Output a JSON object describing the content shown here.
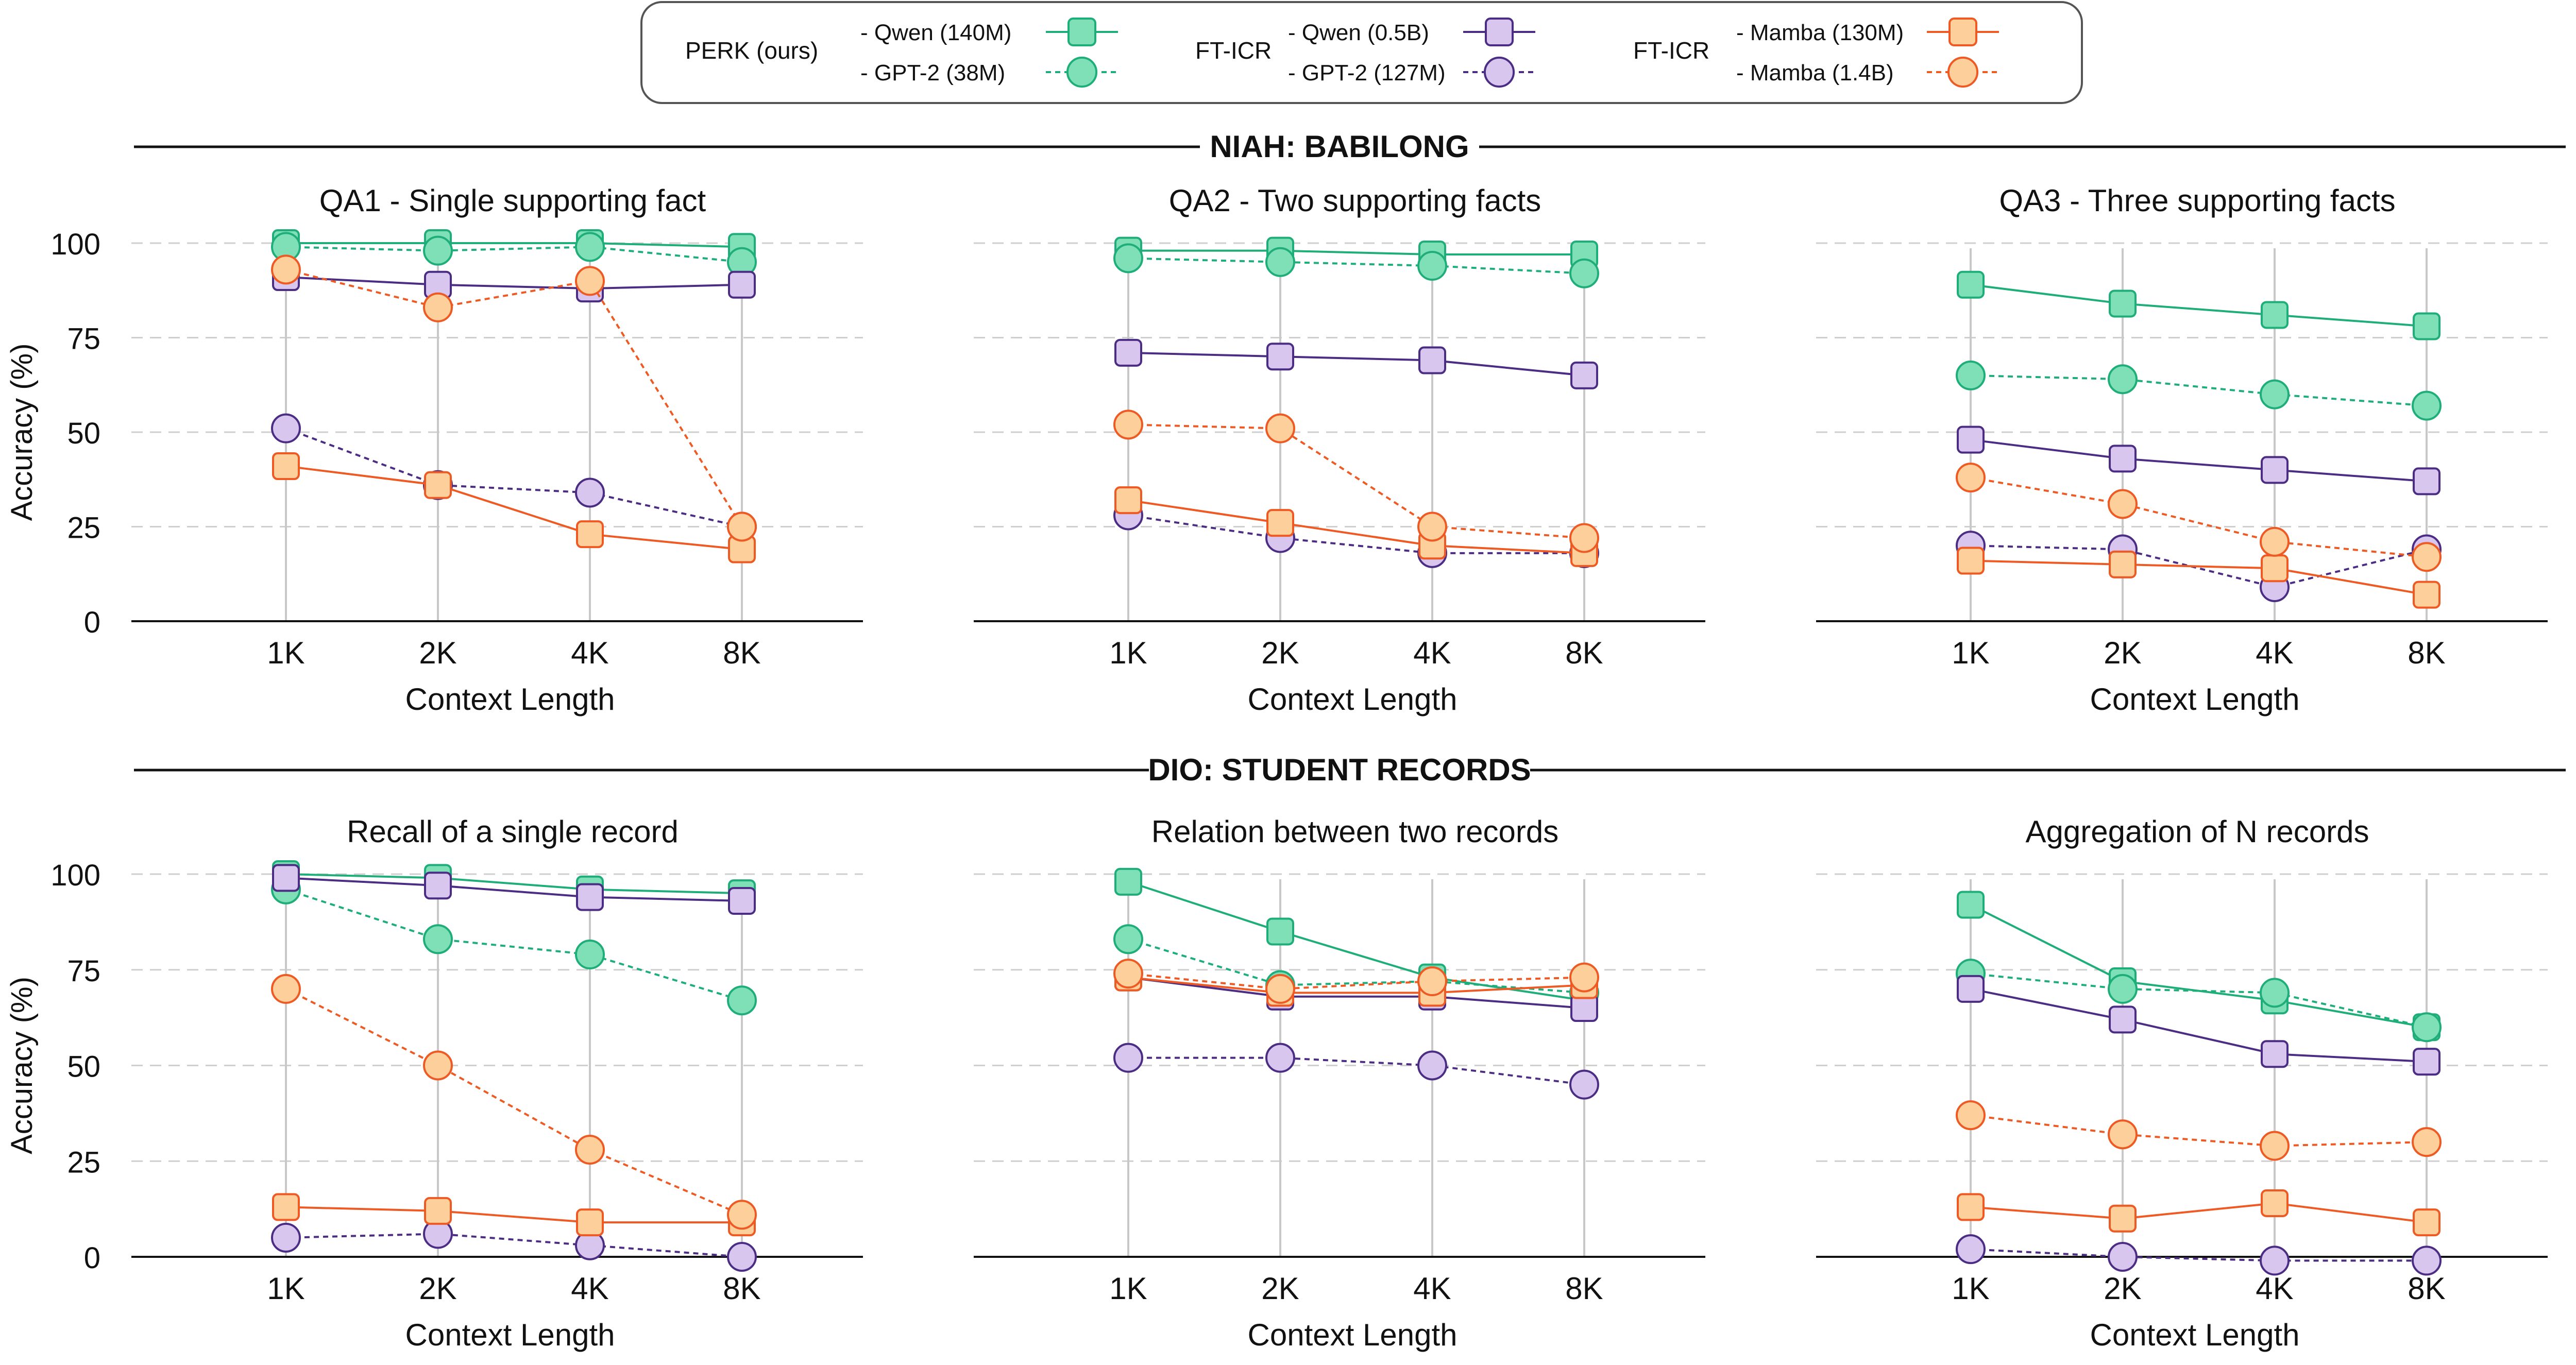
{
  "legend": {
    "groups": [
      {
        "group_label": "PERK (ours)",
        "entries": [
          {
            "label": "- Qwen (140M)",
            "series_key": "perk_qwen"
          },
          {
            "label": "- GPT-2 (38M)",
            "series_key": "perk_gpt2"
          }
        ]
      },
      {
        "group_label": "FT-ICR",
        "entries": [
          {
            "label": "- Qwen (0.5B)",
            "series_key": "ft_qwen"
          },
          {
            "label": "- GPT-2 (127M)",
            "series_key": "ft_gpt2"
          }
        ]
      },
      {
        "group_label": "FT-ICR",
        "entries": [
          {
            "label": "- Mamba (130M)",
            "series_key": "ft_mamba130"
          },
          {
            "label": "- Mamba (1.4B)",
            "series_key": "ft_mamba14"
          }
        ]
      }
    ]
  },
  "series_styles": {
    "perk_qwen": {
      "stroke": "#1fae7a",
      "fill": "#7fe0b8",
      "marker": "square",
      "dashed": false
    },
    "perk_gpt2": {
      "stroke": "#1fae7a",
      "fill": "#7fe0b8",
      "marker": "circle",
      "dashed": true
    },
    "ft_qwen": {
      "stroke": "#4b2e83",
      "fill": "#d8c6ee",
      "marker": "square",
      "dashed": false
    },
    "ft_gpt2": {
      "stroke": "#4b2e83",
      "fill": "#d8c6ee",
      "marker": "circle",
      "dashed": true
    },
    "ft_mamba130": {
      "stroke": "#ee5a24",
      "fill": "#fdcf9b",
      "marker": "square",
      "dashed": false
    },
    "ft_mamba14": {
      "stroke": "#ee5a24",
      "fill": "#fdcf9b",
      "marker": "circle",
      "dashed": true
    }
  },
  "sections": [
    {
      "title": "NIAH: BABILONG"
    },
    {
      "title": "DIO: STUDENT RECORDS"
    }
  ],
  "chart_data": [
    {
      "type": "line",
      "section": 0,
      "title": "QA1 - Single supporting fact",
      "categories": [
        "1K",
        "2K",
        "4K",
        "8K"
      ],
      "xlabel": "Context Length",
      "ylabel": "Accuracy (%)",
      "ylim": [
        0,
        100
      ],
      "yticks": [
        0,
        25,
        50,
        75,
        100
      ],
      "grid": true,
      "series": [
        {
          "key": "perk_qwen",
          "name": "PERK (ours) - Qwen (140M)",
          "values": [
            100,
            100,
            100,
            99
          ]
        },
        {
          "key": "perk_gpt2",
          "name": "PERK (ours) - GPT-2 (38M)",
          "values": [
            99,
            98,
            99,
            95
          ]
        },
        {
          "key": "ft_qwen",
          "name": "FT-ICR - Qwen (0.5B)",
          "values": [
            91,
            89,
            88,
            89
          ]
        },
        {
          "key": "ft_gpt2",
          "name": "FT-ICR - GPT-2 (127M)",
          "values": [
            51,
            36,
            34,
            25
          ]
        },
        {
          "key": "ft_mamba130",
          "name": "FT-ICR - Mamba (130M)",
          "values": [
            41,
            36,
            23,
            19
          ]
        },
        {
          "key": "ft_mamba14",
          "name": "FT-ICR - Mamba (1.4B)",
          "values": [
            93,
            83,
            90,
            25
          ]
        }
      ]
    },
    {
      "type": "line",
      "section": 0,
      "title": "QA2 - Two supporting facts",
      "categories": [
        "1K",
        "2K",
        "4K",
        "8K"
      ],
      "xlabel": "Context Length",
      "ylabel": "",
      "ylim": [
        0,
        100
      ],
      "yticks": [
        0,
        25,
        50,
        75,
        100
      ],
      "grid": true,
      "series": [
        {
          "key": "perk_qwen",
          "name": "PERK (ours) - Qwen (140M)",
          "values": [
            98,
            98,
            97,
            97
          ]
        },
        {
          "key": "perk_gpt2",
          "name": "PERK (ours) - GPT-2 (38M)",
          "values": [
            96,
            95,
            94,
            92
          ]
        },
        {
          "key": "ft_qwen",
          "name": "FT-ICR - Qwen (0.5B)",
          "values": [
            71,
            70,
            69,
            65
          ]
        },
        {
          "key": "ft_gpt2",
          "name": "FT-ICR - GPT-2 (127M)",
          "values": [
            28,
            22,
            18,
            18
          ]
        },
        {
          "key": "ft_mamba130",
          "name": "FT-ICR - Mamba (130M)",
          "values": [
            32,
            26,
            20,
            18
          ]
        },
        {
          "key": "ft_mamba14",
          "name": "FT-ICR - Mamba (1.4B)",
          "values": [
            52,
            51,
            25,
            22
          ]
        }
      ]
    },
    {
      "type": "line",
      "section": 0,
      "title": "QA3 - Three supporting facts",
      "categories": [
        "1K",
        "2K",
        "4K",
        "8K"
      ],
      "xlabel": "Context Length",
      "ylabel": "",
      "ylim": [
        0,
        100
      ],
      "yticks": [
        0,
        25,
        50,
        75,
        100
      ],
      "grid": true,
      "series": [
        {
          "key": "perk_qwen",
          "name": "PERK (ours) - Qwen (140M)",
          "values": [
            89,
            84,
            81,
            78
          ]
        },
        {
          "key": "perk_gpt2",
          "name": "PERK (ours) - GPT-2 (38M)",
          "values": [
            65,
            64,
            60,
            57
          ]
        },
        {
          "key": "ft_qwen",
          "name": "FT-ICR - Qwen (0.5B)",
          "values": [
            48,
            43,
            40,
            37
          ]
        },
        {
          "key": "ft_gpt2",
          "name": "FT-ICR - GPT-2 (127M)",
          "values": [
            20,
            19,
            9,
            19
          ]
        },
        {
          "key": "ft_mamba130",
          "name": "FT-ICR - Mamba (130M)",
          "values": [
            16,
            15,
            14,
            7
          ]
        },
        {
          "key": "ft_mamba14",
          "name": "FT-ICR - Mamba (1.4B)",
          "values": [
            38,
            31,
            21,
            17
          ]
        }
      ]
    },
    {
      "type": "line",
      "section": 1,
      "title": "Recall of a single record",
      "categories": [
        "1K",
        "2K",
        "4K",
        "8K"
      ],
      "xlabel": "Context Length",
      "ylabel": "Accuracy (%)",
      "ylim": [
        0,
        100
      ],
      "yticks": [
        0,
        25,
        50,
        75,
        100
      ],
      "grid": true,
      "series": [
        {
          "key": "perk_qwen",
          "name": "PERK (ours) - Qwen (140M)",
          "values": [
            100,
            99,
            96,
            95
          ]
        },
        {
          "key": "perk_gpt2",
          "name": "PERK (ours) - GPT-2 (38M)",
          "values": [
            96,
            83,
            79,
            67
          ]
        },
        {
          "key": "ft_qwen",
          "name": "FT-ICR - Qwen (0.5B)",
          "values": [
            99,
            97,
            94,
            93
          ]
        },
        {
          "key": "ft_gpt2",
          "name": "FT-ICR - GPT-2 (127M)",
          "values": [
            5,
            6,
            3,
            0
          ]
        },
        {
          "key": "ft_mamba130",
          "name": "FT-ICR - Mamba (130M)",
          "values": [
            13,
            12,
            9,
            9
          ]
        },
        {
          "key": "ft_mamba14",
          "name": "FT-ICR - Mamba (1.4B)",
          "values": [
            70,
            50,
            28,
            11
          ]
        }
      ]
    },
    {
      "type": "line",
      "section": 1,
      "title": "Relation between two records",
      "categories": [
        "1K",
        "2K",
        "4K",
        "8K"
      ],
      "xlabel": "Context Length",
      "ylabel": "",
      "ylim": [
        0,
        100
      ],
      "yticks": [
        0,
        25,
        50,
        75,
        100
      ],
      "grid": true,
      "series": [
        {
          "key": "perk_qwen",
          "name": "PERK (ours) - Qwen (140M)",
          "values": [
            98,
            85,
            73,
            67
          ]
        },
        {
          "key": "perk_gpt2",
          "name": "PERK (ours) - GPT-2 (38M)",
          "values": [
            83,
            71,
            72,
            69
          ]
        },
        {
          "key": "ft_qwen",
          "name": "FT-ICR - Qwen (0.5B)",
          "values": [
            73,
            68,
            68,
            65
          ]
        },
        {
          "key": "ft_gpt2",
          "name": "FT-ICR - GPT-2 (127M)",
          "values": [
            52,
            52,
            50,
            45
          ]
        },
        {
          "key": "ft_mamba130",
          "name": "FT-ICR - Mamba (130M)",
          "values": [
            73,
            69,
            69,
            71
          ]
        },
        {
          "key": "ft_mamba14",
          "name": "FT-ICR - Mamba (1.4B)",
          "values": [
            74,
            70,
            72,
            73
          ]
        }
      ]
    },
    {
      "type": "line",
      "section": 1,
      "title": "Aggregation of N records",
      "categories": [
        "1K",
        "2K",
        "4K",
        "8K"
      ],
      "xlabel": "Context Length",
      "ylabel": "",
      "ylim": [
        0,
        100
      ],
      "yticks": [
        0,
        25,
        50,
        75,
        100
      ],
      "grid": true,
      "series": [
        {
          "key": "perk_qwen",
          "name": "PERK (ours) - Qwen (140M)",
          "values": [
            92,
            72,
            67,
            60
          ]
        },
        {
          "key": "perk_gpt2",
          "name": "PERK (ours) - GPT-2 (38M)",
          "values": [
            74,
            70,
            69,
            60
          ]
        },
        {
          "key": "ft_qwen",
          "name": "FT-ICR - Qwen (0.5B)",
          "values": [
            70,
            62,
            53,
            51
          ]
        },
        {
          "key": "ft_gpt2",
          "name": "FT-ICR - GPT-2 (127M)",
          "values": [
            2,
            0,
            -1,
            -1
          ]
        },
        {
          "key": "ft_mamba130",
          "name": "FT-ICR - Mamba (130M)",
          "values": [
            13,
            10,
            14,
            9
          ]
        },
        {
          "key": "ft_mamba14",
          "name": "FT-ICR - Mamba (1.4B)",
          "values": [
            37,
            32,
            29,
            30
          ]
        }
      ]
    }
  ]
}
